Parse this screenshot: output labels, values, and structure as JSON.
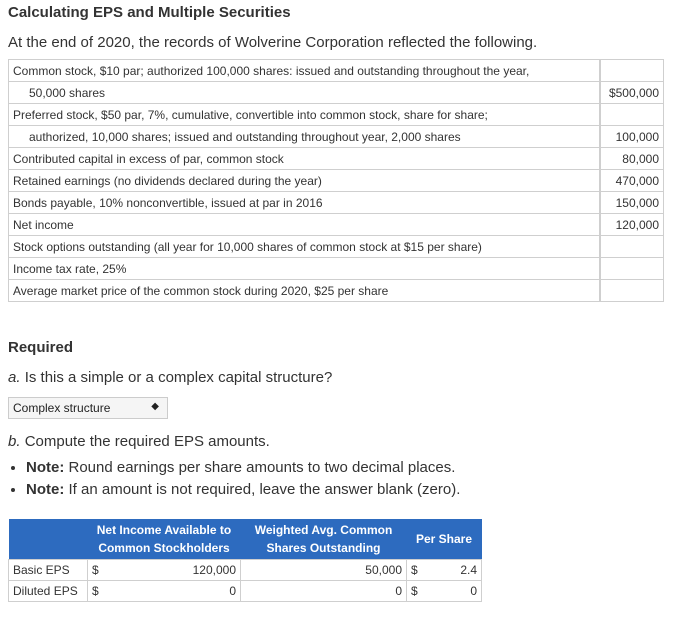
{
  "title": "Calculating EPS and Multiple Securities",
  "intro": "At the end of 2020, the records of Wolverine Corporation reflected the following.",
  "facts": {
    "row1_a": "Common stock, $10 par; authorized 100,000 shares: issued and outstanding throughout the year,",
    "row1_b": "50,000 shares",
    "row1_amt": "$500,000",
    "row2_a": "Preferred stock, $50 par, 7%, cumulative, convertible into common stock, share for share;",
    "row2_b": "authorized, 10,000 shares; issued and outstanding throughout year, 2,000 shares",
    "row2_amt": "100,000",
    "row3": "Contributed capital in excess of par, common stock",
    "row3_amt": "80,000",
    "row4": "Retained earnings (no dividends declared during the year)",
    "row4_amt": "470,000",
    "row5": "Bonds payable, 10% nonconvertible, issued at par in 2016",
    "row5_amt": "150,000",
    "row6": "Net income",
    "row6_amt": "120,000",
    "row7": "Stock options outstanding (all year for 10,000 shares of common stock at $15 per share)",
    "row8": "Income tax rate, 25%",
    "row9": "Average market price of the common stock during 2020, $25 per share"
  },
  "required": "Required",
  "qa_label": "a.",
  "qa_text": "Is this a simple or a complex capital structure?",
  "qa_answer": "Complex structure",
  "qb_label": "b.",
  "qb_text": "Compute the required EPS amounts.",
  "notes": [
    {
      "bold": "Note:",
      "text": "Round earnings per share amounts to two decimal places."
    },
    {
      "bold": "Note:",
      "text": "If an amount is not required, leave the answer blank (zero)."
    }
  ],
  "eps_table": {
    "h_ni": "Net Income Available to Common Stockholders",
    "h_sh": "Weighted Avg. Common Shares Outstanding",
    "h_ps": "Per Share",
    "currency": "$",
    "rows": [
      {
        "label": "Basic EPS",
        "ni": "120,000",
        "sh": "50,000",
        "ps": "2.4"
      },
      {
        "label": "Diluted EPS",
        "ni": "0",
        "sh": "0",
        "ps": "0"
      }
    ]
  }
}
